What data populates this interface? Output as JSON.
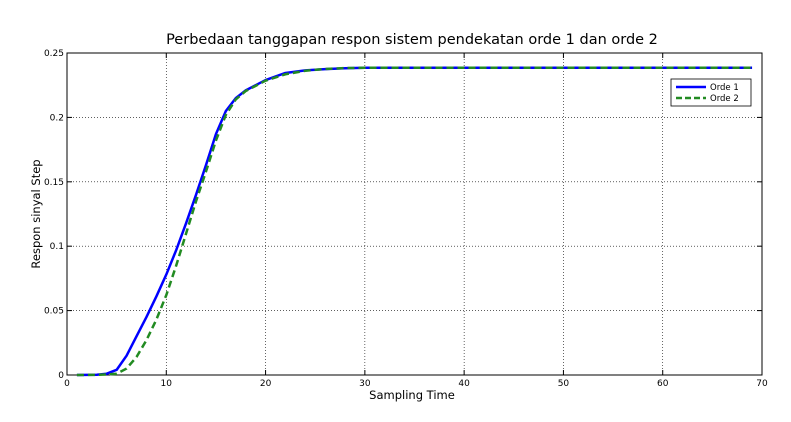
{
  "chart_data": {
    "type": "line",
    "title": "Perbedaan tanggapan respon sistem pendekatan orde 1 dan orde 2",
    "xlabel": "Sampling Time",
    "ylabel": "Respon sinyal Step",
    "xlim": [
      0,
      70
    ],
    "ylim": [
      0,
      0.25
    ],
    "xticks": [
      0,
      10,
      20,
      30,
      40,
      50,
      60,
      70
    ],
    "yticks": [
      0,
      0.05,
      0.1,
      0.15,
      0.2,
      0.25
    ],
    "ytick_labels": [
      "0",
      "0.05",
      "0.1",
      "0.15",
      "0.2",
      "0.25"
    ],
    "grid": true,
    "legend_position": "top-right",
    "series": [
      {
        "name": "Orde 1",
        "color": "#0000ff",
        "style": "solid",
        "x": [
          1,
          3,
          4,
          5,
          6,
          7,
          8,
          9,
          10,
          11,
          12,
          13,
          14,
          15,
          16,
          17,
          18,
          19,
          20,
          22,
          24,
          26,
          28,
          30,
          35,
          40,
          50,
          60,
          69
        ],
        "y": [
          0,
          0.0002,
          0.001,
          0.004,
          0.015,
          0.03,
          0.045,
          0.061,
          0.078,
          0.097,
          0.118,
          0.14,
          0.163,
          0.187,
          0.205,
          0.215,
          0.221,
          0.225,
          0.229,
          0.2345,
          0.2365,
          0.2375,
          0.2382,
          0.2385,
          0.2385,
          0.2385,
          0.2385,
          0.2385,
          0.2385
        ]
      },
      {
        "name": "Orde 2",
        "color": "#228b22",
        "style": "dashed",
        "x": [
          1,
          3,
          4,
          5,
          6,
          7,
          8,
          9,
          10,
          11,
          12,
          13,
          14,
          15,
          16,
          17,
          18,
          19,
          20,
          22,
          24,
          26,
          28,
          30,
          35,
          40,
          50,
          60,
          69
        ],
        "y": [
          0,
          0.0001,
          0.0004,
          0.001,
          0.005,
          0.014,
          0.027,
          0.043,
          0.062,
          0.085,
          0.11,
          0.135,
          0.158,
          0.182,
          0.202,
          0.214,
          0.2205,
          0.2245,
          0.2285,
          0.2335,
          0.2362,
          0.2376,
          0.2383,
          0.2385,
          0.2385,
          0.2385,
          0.2385,
          0.2385,
          0.2385
        ]
      }
    ]
  }
}
